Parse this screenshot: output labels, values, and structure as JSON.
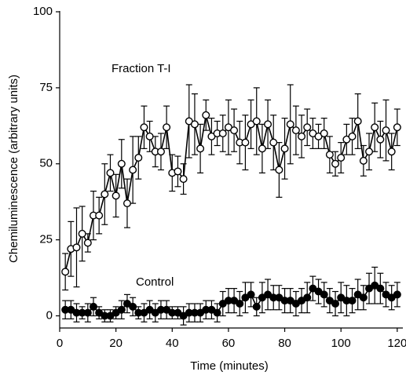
{
  "chart_data": {
    "type": "line",
    "x_label": "Time (minutes)",
    "y_label": "Chemiluminescence (arbitrary units)",
    "annotations": [
      "Fraction T-I",
      "Control"
    ],
    "x": [
      2,
      4,
      6,
      8,
      10,
      12,
      14,
      16,
      18,
      20,
      22,
      24,
      26,
      28,
      30,
      32,
      34,
      36,
      38,
      40,
      42,
      44,
      46,
      48,
      50,
      52,
      54,
      56,
      58,
      60,
      62,
      64,
      66,
      68,
      70,
      72,
      74,
      76,
      78,
      80,
      82,
      84,
      86,
      88,
      90,
      92,
      94,
      96,
      98,
      100,
      102,
      104,
      106,
      108,
      110,
      112,
      114,
      116,
      118,
      120
    ],
    "xlim": [
      0,
      122
    ],
    "xticks": [
      0,
      20,
      40,
      60,
      80,
      100,
      120
    ],
    "ylim": [
      -4,
      100
    ],
    "yticks": [
      0,
      25,
      50,
      75,
      100
    ],
    "series": [
      {
        "name": "Fraction T-I",
        "color": "#000000",
        "marker_fill": "#ffffff",
        "values": [
          14.5,
          22,
          22.5,
          27,
          24,
          33,
          33,
          40,
          47,
          39.5,
          50,
          37,
          48,
          52,
          62,
          59,
          54,
          54,
          62,
          47,
          47.5,
          45,
          64,
          63,
          55,
          66,
          59,
          60,
          60,
          62,
          61,
          57,
          57,
          63,
          64,
          55,
          63,
          57,
          48,
          55,
          63,
          61,
          59,
          62,
          60,
          59,
          60,
          53,
          50,
          52,
          58,
          59,
          64,
          51,
          54,
          62,
          58,
          61,
          54,
          62
        ],
        "errors": [
          6,
          9,
          13,
          9,
          3,
          8,
          6,
          10,
          6,
          7,
          8,
          8,
          11,
          7,
          7,
          5,
          5,
          6,
          7,
          6,
          5,
          5,
          12,
          10,
          8,
          5,
          6,
          4,
          6,
          9,
          7,
          7,
          9,
          8,
          11,
          8,
          8,
          9,
          9,
          10,
          13,
          8,
          7,
          6,
          5,
          4,
          5,
          6,
          4,
          5,
          5,
          6,
          9,
          5,
          6,
          8,
          6,
          10,
          6,
          6
        ]
      },
      {
        "name": "Control",
        "color": "#000000",
        "marker_fill": "#000000",
        "values": [
          2,
          2,
          1,
          1,
          1,
          3,
          1,
          0,
          0,
          1,
          2,
          4,
          3,
          1,
          1,
          2,
          1,
          2,
          2,
          1,
          1,
          0,
          1,
          1,
          1,
          2,
          2,
          1,
          4,
          5,
          5,
          4,
          6,
          7,
          3,
          6,
          7,
          6,
          6,
          5,
          5,
          4,
          5,
          6,
          9,
          8,
          7,
          5,
          4,
          6,
          5,
          5,
          7,
          6,
          9,
          10,
          9,
          7,
          6,
          7
        ],
        "errors": [
          3,
          3,
          3,
          2,
          3,
          3,
          2,
          2,
          2,
          2,
          3,
          3,
          3,
          2,
          3,
          3,
          3,
          3,
          3,
          2,
          2,
          3,
          3,
          3,
          3,
          3,
          3,
          3,
          4,
          4,
          4,
          4,
          5,
          4,
          3,
          5,
          5,
          4,
          4,
          4,
          4,
          4,
          4,
          5,
          4,
          4,
          4,
          4,
          4,
          5,
          5,
          4,
          5,
          4,
          5,
          6,
          5,
          4,
          4,
          4
        ]
      }
    ]
  }
}
